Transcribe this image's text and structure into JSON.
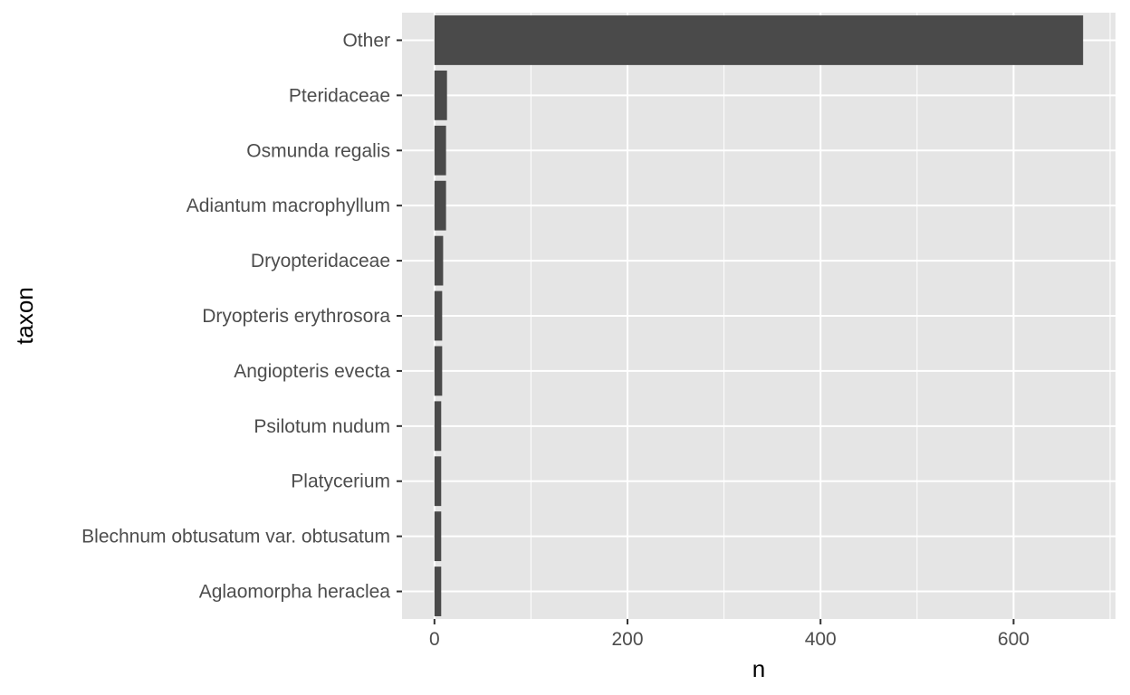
{
  "chart_data": {
    "type": "bar",
    "orientation": "horizontal",
    "xlabel": "n",
    "ylabel": "taxon",
    "categories": [
      "Other",
      "Pteridaceae",
      "Osmunda regalis",
      "Adiantum macrophyllum",
      "Dryopteridaceae",
      "Dryopteris erythrosora",
      "Angiopteris evecta",
      "Psilotum nudum",
      "Platycerium",
      "Blechnum obtusatum var. obtusatum",
      "Aglaomorpha heraclea"
    ],
    "values": [
      672,
      13,
      12,
      12,
      9,
      8,
      8,
      7,
      7,
      7,
      7
    ],
    "xlim": [
      -33.6,
      705.6
    ],
    "xticks": [
      0,
      200,
      400,
      600
    ],
    "xtick_labels": [
      "0",
      "200",
      "400",
      "600"
    ],
    "grid": true,
    "colors": {
      "panel_background": "#e5e5e5",
      "grid_line": "#ffffff",
      "bar_fill": "#4a4a4a",
      "tick_text": "#4d4d4d",
      "tick_mark": "#333333",
      "axis_title": "#000000"
    }
  }
}
